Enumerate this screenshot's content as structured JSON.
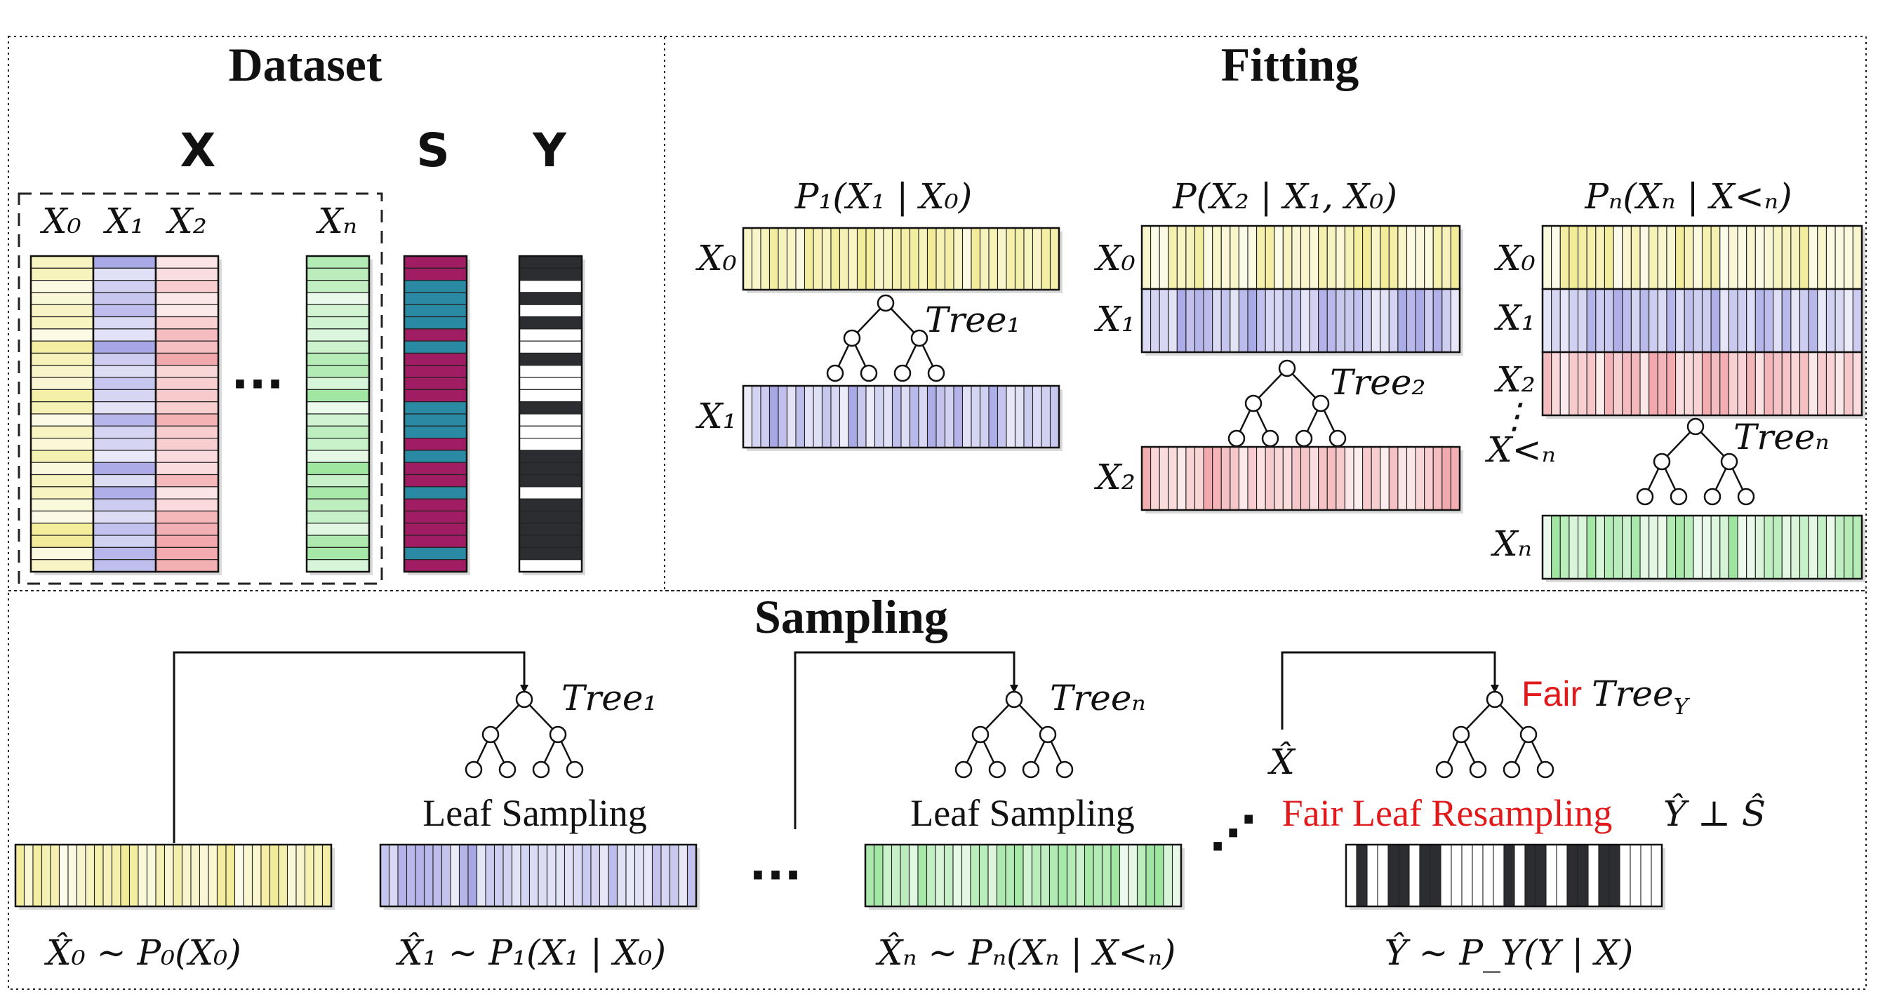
{
  "colors": {
    "x0": "#f2ec97",
    "x1": "#a7a6e6",
    "x2": "#f2a6aa",
    "xn": "#9ee6a0",
    "s_magenta": "#a01d63",
    "s_teal": "#2a8aa4",
    "y_dark": "#2b2d31",
    "accent_red": "#e0191b"
  },
  "dataset": {
    "title": "Dataset",
    "col_x": "X",
    "col_s": "S",
    "col_y": "Y",
    "var_x0": "X₀",
    "var_x1": "X₁",
    "var_x2": "X₂",
    "var_xn": "Xₙ",
    "ellipsis": "···"
  },
  "fitting": {
    "title": "Fitting",
    "formula_1": "P₁(X₁ | X₀)",
    "formula_2": "P(X₂ | X₁, X₀)",
    "formula_n": "Pₙ(Xₙ | X<ₙ)",
    "g1_x0": "X₀",
    "g1_x1": "X₁",
    "g2_x0": "X₀",
    "g2_x1": "X₁",
    "g2_x2": "X₂",
    "g3_x0": "X₀",
    "g3_x1": "X₁",
    "g3_x2": "X₂",
    "g3_xlt": "X<ₙ",
    "g3_vdots": "⋮",
    "g3_xn": "Xₙ",
    "tree_1": "Tree₁",
    "tree_2": "Tree₂",
    "tree_n": "Treeₙ"
  },
  "sampling": {
    "title": "Sampling",
    "tree_1": "Tree₁",
    "tree_n": "Treeₙ",
    "fair_word": "Fair",
    "tree_y": "Tree",
    "tree_y_sub": "Y",
    "leaf_sampling_1": "Leaf Sampling",
    "leaf_sampling_n": "Leaf Sampling",
    "fair_leaf_resampling": "Fair Leaf Resampling",
    "independence": "Ŷ ⊥ Ŝ",
    "xhat": "X̂",
    "ellipsis_h": "···",
    "ellipsis_d": "⋰",
    "caption_0": "X̂₀ ∼ P₀(X₀)",
    "caption_1": "X̂₁ ∼ P₁(X₁ | X₀)",
    "caption_n": "X̂ₙ ∼ Pₙ(Xₙ | X<ₙ)",
    "caption_y": "Ŷ ∼ P_Y(Y | X)"
  }
}
